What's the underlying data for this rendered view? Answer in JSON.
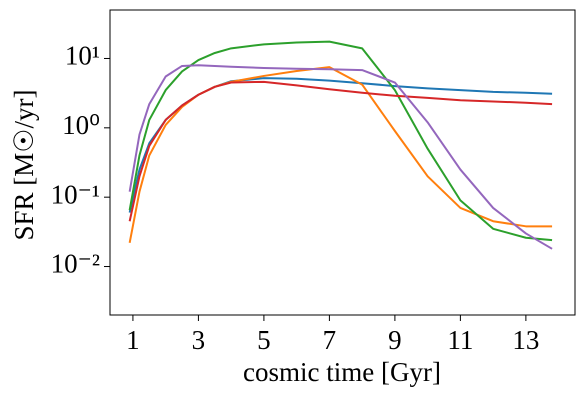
{
  "chart_data": {
    "type": "line",
    "x": [
      0.9,
      1.2,
      1.5,
      2,
      2.5,
      3,
      3.5,
      4,
      5,
      6,
      7,
      8,
      9,
      10,
      11,
      12,
      13,
      13.8
    ],
    "series": [
      {
        "color": "#1f77b4",
        "values": [
          0.06,
          0.25,
          0.6,
          1.3,
          2.1,
          3.0,
          3.9,
          4.7,
          5.2,
          5.1,
          4.8,
          4.4,
          4.0,
          3.7,
          3.5,
          3.3,
          3.2,
          3.1
        ]
      },
      {
        "color": "#ff7f0e",
        "values": [
          0.022,
          0.12,
          0.4,
          1.1,
          2.0,
          3.0,
          3.9,
          4.6,
          5.6,
          6.6,
          7.5,
          4.2,
          0.9,
          0.2,
          0.07,
          0.045,
          0.038,
          0.038
        ]
      },
      {
        "color": "#2ca02c",
        "values": [
          0.065,
          0.4,
          1.3,
          3.5,
          6.5,
          9.5,
          12,
          14,
          16,
          17,
          17.5,
          14,
          3.5,
          0.5,
          0.09,
          0.035,
          0.026,
          0.024
        ]
      },
      {
        "color": "#d62728",
        "values": [
          0.045,
          0.2,
          0.55,
          1.3,
          2.1,
          3.0,
          3.9,
          4.5,
          4.6,
          4.1,
          3.6,
          3.2,
          2.9,
          2.7,
          2.5,
          2.4,
          2.3,
          2.2
        ]
      },
      {
        "color": "#9467bd",
        "values": [
          0.12,
          0.8,
          2.2,
          5.5,
          7.8,
          8.0,
          7.8,
          7.6,
          7.3,
          7.1,
          7.0,
          6.8,
          4.5,
          1.2,
          0.25,
          0.07,
          0.03,
          0.018
        ]
      }
    ],
    "xlabel": "cosmic time [Gyr]",
    "ylabel": "SFR [M☉/yr]",
    "xlim": [
      0.3,
      14.5
    ],
    "xticks": [
      1,
      3,
      5,
      7,
      9,
      11,
      13
    ],
    "ylim": [
      0.002,
      50
    ],
    "ylog": true,
    "yticks": [
      {
        "value": 0.01,
        "label": "10⁻²"
      },
      {
        "value": 0.1,
        "label": "10⁻¹"
      },
      {
        "value": 1,
        "label": "10⁰"
      },
      {
        "value": 10,
        "label": "10¹"
      }
    ]
  }
}
